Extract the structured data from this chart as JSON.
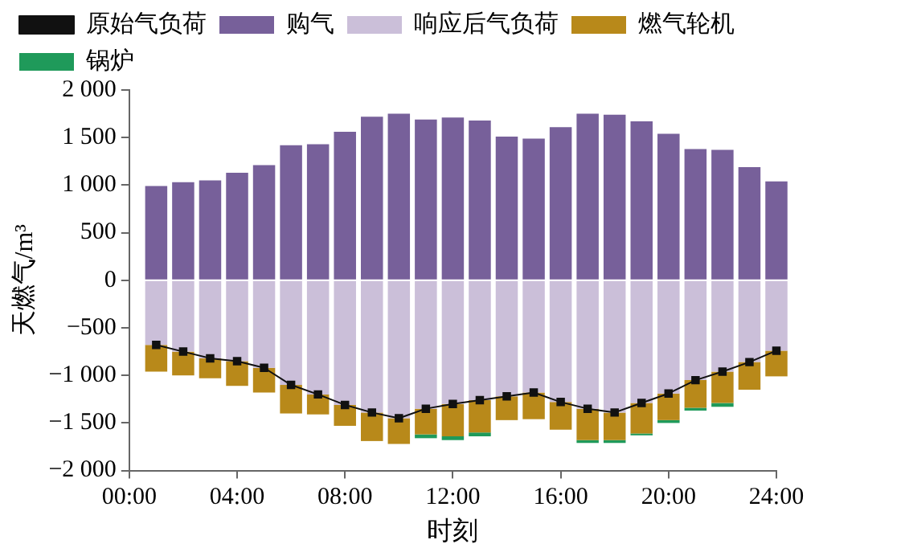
{
  "chart_data": {
    "type": "bar",
    "stacked": true,
    "xlabel": "时刻",
    "ylabel": "天燃气/m³",
    "x": [
      1,
      2,
      3,
      4,
      5,
      6,
      7,
      8,
      9,
      10,
      11,
      12,
      13,
      14,
      15,
      16,
      17,
      18,
      19,
      20,
      21,
      22,
      23,
      24
    ],
    "series": [
      {
        "name": "购气",
        "color": "#77609a",
        "values": [
          990,
          1030,
          1050,
          1130,
          1210,
          1420,
          1430,
          1560,
          1720,
          1750,
          1690,
          1710,
          1680,
          1510,
          1490,
          1610,
          1750,
          1740,
          1670,
          1540,
          1380,
          1370,
          1190,
          1040
        ]
      },
      {
        "name": "响应后气负荷",
        "color": "#cbbfd9",
        "values": [
          -680,
          -750,
          -820,
          -850,
          -920,
          -1100,
          -1200,
          -1310,
          -1390,
          -1450,
          -1350,
          -1300,
          -1260,
          -1220,
          -1180,
          -1280,
          -1350,
          -1390,
          -1290,
          -1190,
          -1050,
          -960,
          -860,
          -740
        ]
      },
      {
        "name": "燃气轮机",
        "color": "#b8891a",
        "values": [
          -280,
          -250,
          -210,
          -260,
          -260,
          -300,
          -210,
          -220,
          -300,
          -270,
          -270,
          -340,
          -340,
          -250,
          -280,
          -290,
          -330,
          -290,
          -320,
          -280,
          -290,
          -330,
          -290,
          -270
        ]
      },
      {
        "name": "锅炉",
        "color": "#1f9a5a",
        "values": [
          null,
          null,
          null,
          null,
          null,
          null,
          null,
          null,
          null,
          null,
          -40,
          -40,
          -40,
          null,
          null,
          null,
          -30,
          -30,
          -20,
          -30,
          -30,
          -40,
          null,
          null
        ]
      },
      {
        "name": "原始气负荷",
        "type": "line",
        "color": "#111111",
        "values": [
          -680,
          -750,
          -820,
          -850,
          -920,
          -1100,
          -1200,
          -1310,
          -1390,
          -1450,
          -1350,
          -1300,
          -1260,
          -1220,
          -1180,
          -1280,
          -1350,
          -1390,
          -1290,
          -1190,
          -1050,
          -960,
          -860,
          -740
        ]
      }
    ],
    "xlim": [
      0,
      24
    ],
    "xticks": [
      {
        "value": 0,
        "label": "00:00"
      },
      {
        "value": 4,
        "label": "04:00"
      },
      {
        "value": 8,
        "label": "08:00"
      },
      {
        "value": 12,
        "label": "12:00"
      },
      {
        "value": 16,
        "label": "16:00"
      },
      {
        "value": 20,
        "label": "20:00"
      },
      {
        "value": 24,
        "label": "24:00"
      }
    ],
    "ylim": [
      -2000,
      2000
    ],
    "yticks": [
      {
        "value": -2000,
        "label": "−2 000"
      },
      {
        "value": -1500,
        "label": "−1 500"
      },
      {
        "value": -1000,
        "label": "−1 000"
      },
      {
        "value": -500,
        "label": "−500"
      },
      0,
      500,
      {
        "value": 1000,
        "label": "1 000"
      },
      {
        "value": 1500,
        "label": "1 500"
      },
      {
        "value": 2000,
        "label": "2 000"
      }
    ],
    "grid": false,
    "legend": "top",
    "marker": "square",
    "line_style": "solid"
  }
}
